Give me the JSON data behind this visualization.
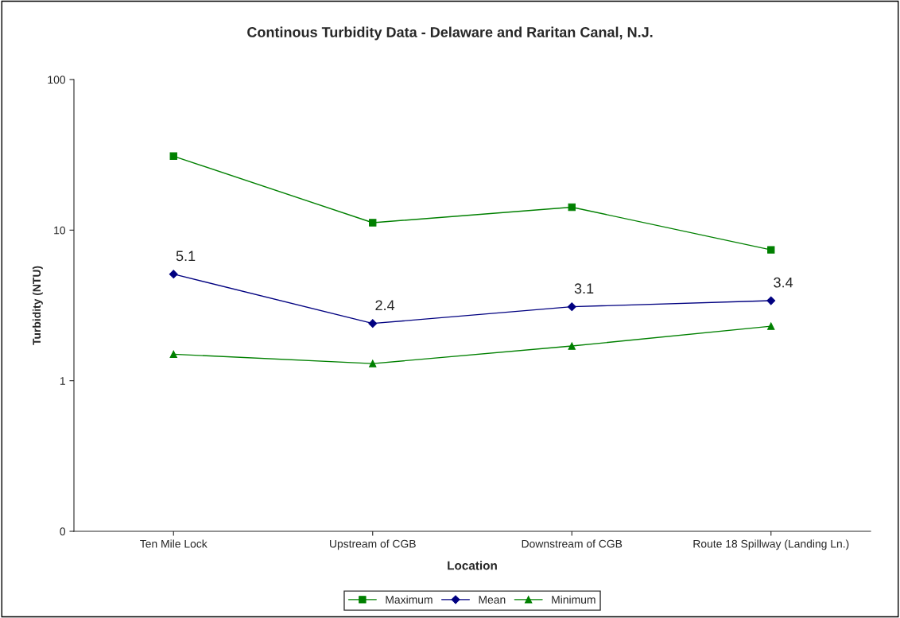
{
  "chart_data": {
    "type": "line",
    "title": "Continous Turbidity Data - Delaware and Raritan Canal, N.J.",
    "xlabel": "Location",
    "ylabel": "Turbidity (NTU)",
    "categories": [
      "Ten Mile Lock",
      "Upstream of CGB",
      "Downstream of CGB",
      "Route 18 Spillway (Landing Ln.)"
    ],
    "series": [
      {
        "name": "Maximum",
        "color": "#008000",
        "marker": "square",
        "values": [
          31,
          11.2,
          14.2,
          7.4
        ]
      },
      {
        "name": "Mean",
        "color": "#000080",
        "marker": "diamond",
        "values": [
          5.1,
          2.4,
          3.1,
          3.4
        ],
        "value_labels": [
          "5.1",
          "2.4",
          "3.1",
          "3.4"
        ]
      },
      {
        "name": "Minimum",
        "color": "#008000",
        "marker": "triangle",
        "values": [
          1.5,
          1.3,
          1.7,
          2.3
        ]
      }
    ],
    "log": "y",
    "ylim": [
      0.1,
      100
    ],
    "yticks": [
      {
        "value": 0.1,
        "label": "0"
      },
      1,
      10,
      100
    ],
    "grid": false,
    "legend": "bottom",
    "line_style": "solid"
  }
}
